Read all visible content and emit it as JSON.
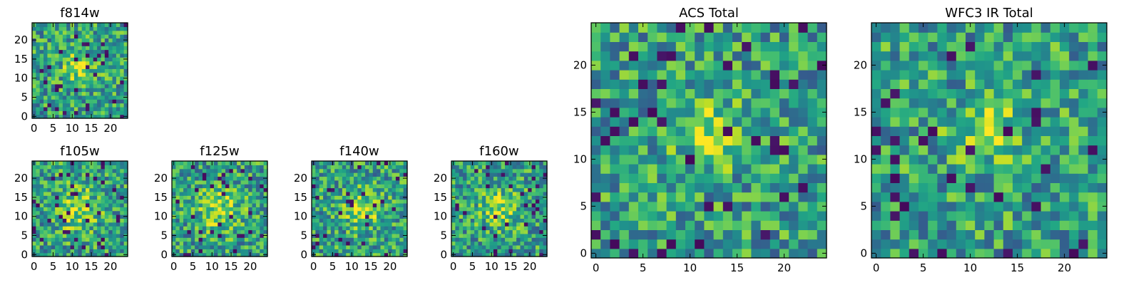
{
  "chart_data": [
    {
      "type": "heatmap",
      "title": "f814w",
      "grid_size": 25,
      "x_ticks": [
        "0",
        "5",
        "10",
        "15",
        "20"
      ],
      "y_ticks": [
        "0",
        "5",
        "10",
        "15",
        "20"
      ],
      "xlim": [
        0,
        24
      ],
      "ylim": [
        0,
        24
      ],
      "colormap": "viridis",
      "peak_center": [
        12,
        13
      ],
      "peak_width": 3.0,
      "noise_seed": 11
    },
    {
      "type": "heatmap",
      "title": "f105w",
      "grid_size": 25,
      "x_ticks": [
        "0",
        "5",
        "10",
        "15",
        "20"
      ],
      "y_ticks": [
        "0",
        "5",
        "10",
        "15",
        "20"
      ],
      "xlim": [
        0,
        24
      ],
      "ylim": [
        0,
        24
      ],
      "colormap": "viridis",
      "peak_center": [
        11,
        12
      ],
      "peak_width": 4.0,
      "noise_seed": 23
    },
    {
      "type": "heatmap",
      "title": "f125w",
      "grid_size": 25,
      "x_ticks": [
        "0",
        "5",
        "10",
        "15",
        "20"
      ],
      "y_ticks": [
        "0",
        "5",
        "10",
        "15",
        "20"
      ],
      "xlim": [
        0,
        24
      ],
      "ylim": [
        0,
        24
      ],
      "colormap": "viridis",
      "peak_center": [
        12,
        12
      ],
      "peak_width": 4.0,
      "noise_seed": 37
    },
    {
      "type": "heatmap",
      "title": "f140w",
      "grid_size": 25,
      "x_ticks": [
        "0",
        "5",
        "10",
        "15",
        "20"
      ],
      "y_ticks": [
        "0",
        "5",
        "10",
        "15",
        "20"
      ],
      "xlim": [
        0,
        24
      ],
      "ylim": [
        0,
        24
      ],
      "colormap": "viridis",
      "peak_center": [
        13,
        12
      ],
      "peak_width": 3.5,
      "noise_seed": 41
    },
    {
      "type": "heatmap",
      "title": "f160w",
      "grid_size": 25,
      "x_ticks": [
        "0",
        "5",
        "10",
        "15",
        "20"
      ],
      "y_ticks": [
        "0",
        "5",
        "10",
        "15",
        "20"
      ],
      "xlim": [
        0,
        24
      ],
      "ylim": [
        0,
        24
      ],
      "colormap": "viridis",
      "peak_center": [
        12,
        12
      ],
      "peak_width": 3.5,
      "noise_seed": 53
    },
    {
      "type": "heatmap",
      "title": "ACS Total",
      "grid_size": 25,
      "x_ticks": [
        "0",
        "5",
        "10",
        "15",
        "20"
      ],
      "y_ticks": [
        "0",
        "5",
        "10",
        "15",
        "20"
      ],
      "xlim": [
        0,
        24
      ],
      "ylim": [
        0,
        24
      ],
      "colormap": "viridis",
      "peak_center": [
        12,
        13
      ],
      "peak_width": 2.5,
      "noise_seed": 67
    },
    {
      "type": "heatmap",
      "title": "WFC3 IR Total",
      "grid_size": 25,
      "x_ticks": [
        "0",
        "5",
        "10",
        "15",
        "20"
      ],
      "y_ticks": [
        "0",
        "5",
        "10",
        "15",
        "20"
      ],
      "xlim": [
        0,
        24
      ],
      "ylim": [
        0,
        24
      ],
      "colormap": "viridis",
      "peak_center": [
        12,
        13
      ],
      "peak_width": 2.5,
      "noise_seed": 79
    }
  ]
}
